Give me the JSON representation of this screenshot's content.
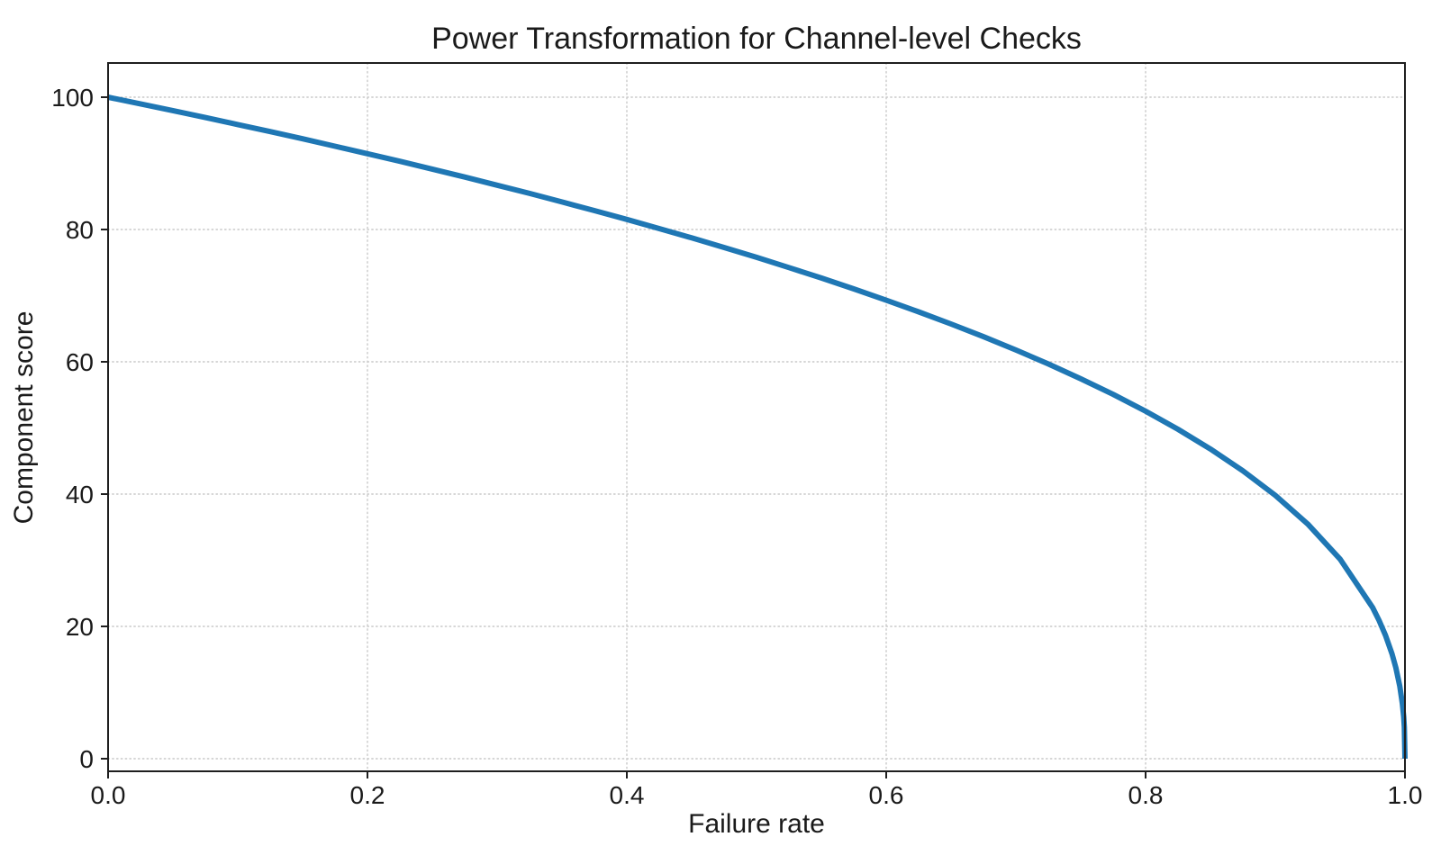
{
  "chart_data": {
    "type": "line",
    "title": "Power Transformation for Channel-level Checks",
    "xlabel": "Failure rate",
    "ylabel": "Component score",
    "xlim": [
      0.0,
      1.0
    ],
    "ylim": [
      0,
      100
    ],
    "x_tick_values": [
      0.0,
      0.2,
      0.4,
      0.6,
      0.8,
      1.0
    ],
    "x_tick_labels": [
      "0.0",
      "0.2",
      "0.4",
      "0.6",
      "0.8",
      "1.0"
    ],
    "y_tick_values": [
      0,
      20,
      40,
      60,
      80,
      100
    ],
    "y_tick_labels": [
      "0",
      "20",
      "40",
      "60",
      "80",
      "100"
    ],
    "grid": "dotted",
    "legend": "none",
    "colors": {
      "line": "#1f77b4",
      "grid": "#c9c9c9",
      "spine": "#1f1f1f",
      "text": "#1a1a1a",
      "background": "#ffffff"
    },
    "series": [
      {
        "name": "component-score-curve",
        "formula": "y = 100 * (1 - x)^0.4",
        "line_width": 6,
        "points": [
          [
            0,
            100
          ],
          [
            0.025,
            98.99
          ],
          [
            0.05,
            97.97
          ],
          [
            0.075,
            96.93
          ],
          [
            0.1,
            95.87
          ],
          [
            0.125,
            94.8
          ],
          [
            0.15,
            93.71
          ],
          [
            0.175,
            92.59
          ],
          [
            0.2,
            91.46
          ],
          [
            0.225,
            90.31
          ],
          [
            0.25,
            89.13
          ],
          [
            0.275,
            87.93
          ],
          [
            0.3,
            86.7
          ],
          [
            0.325,
            85.45
          ],
          [
            0.35,
            84.17
          ],
          [
            0.375,
            82.86
          ],
          [
            0.4,
            81.52
          ],
          [
            0.425,
            80.14
          ],
          [
            0.45,
            78.73
          ],
          [
            0.475,
            77.28
          ],
          [
            0.5,
            75.79
          ],
          [
            0.525,
            74.25
          ],
          [
            0.55,
            72.66
          ],
          [
            0.575,
            71.02
          ],
          [
            0.6,
            69.31
          ],
          [
            0.625,
            67.55
          ],
          [
            0.65,
            65.71
          ],
          [
            0.675,
            63.79
          ],
          [
            0.7,
            61.78
          ],
          [
            0.725,
            59.67
          ],
          [
            0.75,
            57.43
          ],
          [
            0.775,
            55.07
          ],
          [
            0.8,
            52.53
          ],
          [
            0.825,
            49.8
          ],
          [
            0.85,
            46.82
          ],
          [
            0.875,
            43.53
          ],
          [
            0.9,
            39.81
          ],
          [
            0.925,
            35.48
          ],
          [
            0.95,
            30.17
          ],
          [
            0.975,
            22.87
          ],
          [
            0.98,
            20.91
          ],
          [
            0.985,
            18.64
          ],
          [
            0.99,
            15.85
          ],
          [
            0.993,
            13.74
          ],
          [
            0.996,
            10.99
          ],
          [
            0.998,
            8.33
          ],
          [
            0.999,
            6.31
          ],
          [
            0.9995,
            4.78
          ],
          [
            1,
            0
          ]
        ]
      }
    ]
  }
}
